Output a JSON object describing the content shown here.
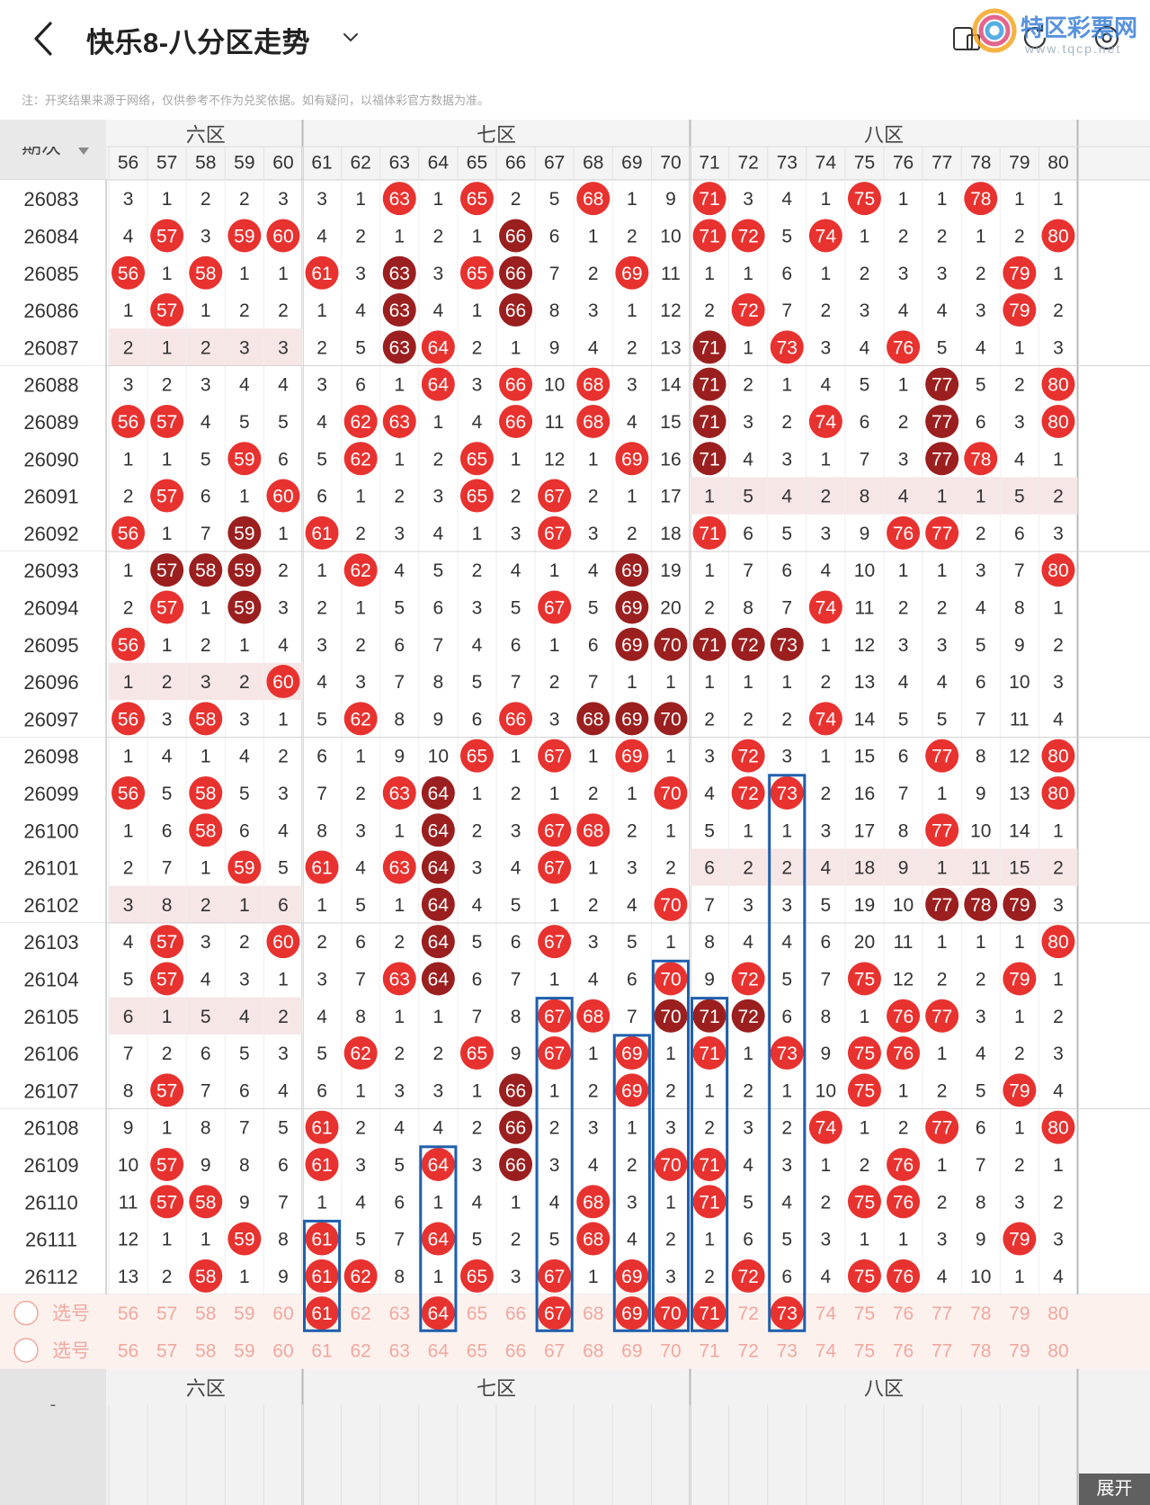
{
  "header": {
    "title": "快乐8-八分区走势",
    "back_icon": "chevron-left-icon",
    "dropdown_icon": "chevron-down-icon",
    "icons": [
      "tablet-icon",
      "refresh-icon",
      "settings-icon"
    ]
  },
  "watermark": {
    "text": "特区彩票网",
    "sub": "www.tqcp.net"
  },
  "notice": "注：开奖结果来源于网络，仅供参考不作为兑奖依据。如有疑问，以福体彩官方数据为准。",
  "table": {
    "period_header": "期次",
    "zones": [
      {
        "label": "六区",
        "start": 56,
        "end": 60
      },
      {
        "label": "七区",
        "start": 61,
        "end": 70
      },
      {
        "label": "八区",
        "start": 71,
        "end": 80
      }
    ],
    "columns": [
      56,
      57,
      58,
      59,
      60,
      61,
      62,
      63,
      64,
      65,
      66,
      67,
      68,
      69,
      70,
      71,
      72,
      73,
      74,
      75,
      76,
      77,
      78,
      79,
      80
    ],
    "rows": [
      {
        "p": "26083",
        "c": [
          3,
          1,
          2,
          2,
          3,
          3,
          1,
          "63",
          1,
          "65",
          2,
          5,
          "68",
          1,
          9,
          "71",
          3,
          4,
          1,
          "75",
          1,
          1,
          "78",
          1,
          1
        ]
      },
      {
        "p": "26084",
        "c": [
          4,
          "57",
          3,
          "59",
          "60",
          4,
          2,
          1,
          2,
          1,
          "66D",
          6,
          1,
          2,
          10,
          "71",
          "72",
          5,
          "74",
          1,
          2,
          2,
          1,
          2,
          "80"
        ]
      },
      {
        "p": "26085",
        "c": [
          "56",
          1,
          "58",
          1,
          1,
          "61",
          3,
          "63D",
          3,
          "65",
          "66D",
          7,
          2,
          "69",
          11,
          1,
          1,
          6,
          1,
          2,
          3,
          3,
          2,
          "79",
          1
        ]
      },
      {
        "p": "26086",
        "c": [
          1,
          "57",
          1,
          2,
          2,
          1,
          4,
          "63D",
          4,
          1,
          "66D",
          8,
          3,
          1,
          12,
          2,
          "72",
          7,
          2,
          3,
          4,
          4,
          3,
          "79",
          2
        ]
      },
      {
        "p": "26087",
        "c": [
          2,
          1,
          2,
          3,
          3,
          2,
          5,
          "63D",
          "64",
          2,
          1,
          9,
          4,
          2,
          13,
          "71D",
          1,
          "73",
          3,
          4,
          "76",
          5,
          4,
          1,
          3
        ]
      },
      {
        "p": "26088",
        "c": [
          3,
          2,
          3,
          4,
          4,
          3,
          6,
          1,
          "64",
          3,
          "66",
          10,
          "68",
          3,
          14,
          "71D",
          2,
          1,
          4,
          5,
          1,
          "77D",
          5,
          2,
          "80"
        ]
      },
      {
        "p": "26089",
        "c": [
          "56",
          "57",
          4,
          5,
          5,
          4,
          "62",
          "63",
          1,
          4,
          "66",
          11,
          "68",
          4,
          15,
          "71D",
          3,
          2,
          "74",
          6,
          2,
          "77D",
          6,
          3,
          "80"
        ]
      },
      {
        "p": "26090",
        "c": [
          1,
          1,
          5,
          "59",
          6,
          5,
          "62",
          1,
          2,
          "65",
          1,
          12,
          1,
          "69",
          16,
          "71D",
          4,
          3,
          1,
          7,
          3,
          "77D",
          "78",
          4,
          1
        ]
      },
      {
        "p": "26091",
        "c": [
          2,
          "57",
          6,
          1,
          "60",
          6,
          1,
          2,
          3,
          "65",
          2,
          "67",
          2,
          1,
          17,
          1,
          5,
          4,
          2,
          8,
          4,
          1,
          1,
          5,
          2
        ]
      },
      {
        "p": "26092",
        "c": [
          "56",
          1,
          7,
          "59D",
          1,
          "61",
          2,
          3,
          4,
          1,
          3,
          "67",
          3,
          2,
          18,
          "71",
          6,
          5,
          3,
          9,
          "76",
          "77",
          2,
          6,
          3
        ]
      },
      {
        "p": "26093",
        "c": [
          1,
          "57D",
          "58D",
          "59D",
          2,
          1,
          "62",
          4,
          5,
          2,
          4,
          1,
          4,
          "69D",
          19,
          1,
          7,
          6,
          4,
          10,
          1,
          1,
          3,
          7,
          "80"
        ]
      },
      {
        "p": "26094",
        "c": [
          2,
          "57",
          1,
          "59D",
          3,
          2,
          1,
          5,
          6,
          3,
          5,
          "67",
          5,
          "69D",
          20,
          2,
          8,
          7,
          "74",
          11,
          2,
          2,
          4,
          8,
          1
        ]
      },
      {
        "p": "26095",
        "c": [
          "56",
          1,
          2,
          1,
          4,
          3,
          2,
          6,
          7,
          4,
          6,
          1,
          6,
          "69D",
          "70D",
          "71D",
          "72D",
          "73D",
          1,
          12,
          3,
          3,
          5,
          9,
          2
        ]
      },
      {
        "p": "26096",
        "c": [
          1,
          2,
          3,
          2,
          "60",
          4,
          3,
          7,
          8,
          5,
          7,
          2,
          7,
          1,
          1,
          1,
          1,
          1,
          2,
          13,
          4,
          4,
          6,
          10,
          3
        ]
      },
      {
        "p": "26097",
        "c": [
          "56",
          3,
          "58",
          3,
          1,
          5,
          "62",
          8,
          9,
          6,
          "66",
          3,
          "68D",
          "69D",
          "70D",
          2,
          2,
          2,
          "74",
          14,
          5,
          5,
          7,
          11,
          4
        ]
      },
      {
        "p": "26098",
        "c": [
          1,
          4,
          1,
          4,
          2,
          6,
          1,
          9,
          10,
          "65",
          1,
          "67",
          1,
          "69",
          1,
          3,
          "72",
          3,
          1,
          15,
          6,
          "77",
          8,
          12,
          "80"
        ]
      },
      {
        "p": "26099",
        "c": [
          "56",
          5,
          "58",
          5,
          3,
          7,
          2,
          "63",
          "64D",
          1,
          2,
          1,
          2,
          1,
          "70",
          4,
          "72",
          "73",
          2,
          16,
          7,
          1,
          9,
          13,
          "80"
        ]
      },
      {
        "p": "26100",
        "c": [
          1,
          6,
          "58",
          6,
          4,
          8,
          3,
          1,
          "64D",
          2,
          3,
          "67",
          "68",
          2,
          1,
          5,
          1,
          1,
          3,
          17,
          8,
          "77",
          10,
          14,
          1
        ]
      },
      {
        "p": "26101",
        "c": [
          2,
          7,
          1,
          "59",
          5,
          "61",
          4,
          "63",
          "64D",
          3,
          4,
          "67",
          1,
          3,
          2,
          6,
          2,
          2,
          4,
          18,
          9,
          1,
          11,
          15,
          2
        ]
      },
      {
        "p": "26102",
        "c": [
          3,
          8,
          2,
          1,
          6,
          1,
          5,
          1,
          "64D",
          4,
          5,
          1,
          2,
          4,
          "70",
          7,
          3,
          3,
          5,
          19,
          10,
          "77D",
          "78D",
          "79D",
          3
        ]
      },
      {
        "p": "26103",
        "c": [
          4,
          "57",
          3,
          2,
          "60",
          2,
          6,
          2,
          "64D",
          5,
          6,
          "67",
          3,
          5,
          1,
          8,
          4,
          4,
          6,
          20,
          11,
          1,
          1,
          1,
          "80"
        ]
      },
      {
        "p": "26104",
        "c": [
          5,
          "57",
          4,
          3,
          1,
          3,
          7,
          "63",
          "64D",
          6,
          7,
          1,
          4,
          6,
          "70",
          9,
          "72",
          5,
          7,
          "75",
          12,
          2,
          2,
          "79",
          1
        ]
      },
      {
        "p": "26105",
        "c": [
          6,
          1,
          5,
          4,
          2,
          4,
          8,
          1,
          1,
          7,
          8,
          "67",
          "68",
          7,
          "70D",
          "71D",
          "72D",
          6,
          8,
          1,
          "76",
          "77",
          3,
          1,
          2
        ]
      },
      {
        "p": "26106",
        "c": [
          7,
          2,
          6,
          5,
          3,
          5,
          "62",
          2,
          2,
          "65",
          9,
          "67",
          1,
          "69",
          1,
          "71",
          1,
          "73",
          9,
          "75",
          "76",
          1,
          4,
          2,
          3
        ]
      },
      {
        "p": "26107",
        "c": [
          8,
          "57",
          7,
          6,
          4,
          6,
          1,
          3,
          3,
          1,
          "66D",
          1,
          2,
          "69",
          2,
          1,
          2,
          1,
          10,
          "75",
          1,
          2,
          5,
          "79",
          4
        ]
      },
      {
        "p": "26108",
        "c": [
          9,
          1,
          8,
          7,
          5,
          "61",
          2,
          4,
          4,
          2,
          "66D",
          2,
          3,
          1,
          3,
          2,
          3,
          2,
          "74",
          1,
          2,
          "77",
          6,
          1,
          "80"
        ]
      },
      {
        "p": "26109",
        "c": [
          10,
          "57",
          9,
          8,
          6,
          "61",
          3,
          5,
          "64",
          3,
          "66D",
          3,
          4,
          2,
          "70",
          "71",
          4,
          3,
          1,
          2,
          "76",
          1,
          7,
          2,
          1
        ]
      },
      {
        "p": "26110",
        "c": [
          11,
          "57",
          "58",
          9,
          7,
          1,
          4,
          6,
          1,
          4,
          1,
          4,
          "68",
          3,
          1,
          "71",
          5,
          4,
          2,
          "75",
          "76",
          2,
          8,
          3,
          2
        ]
      },
      {
        "p": "26111",
        "c": [
          12,
          1,
          1,
          "59",
          8,
          "61",
          5,
          7,
          "64",
          5,
          2,
          5,
          "68",
          4,
          2,
          1,
          6,
          5,
          3,
          1,
          1,
          3,
          9,
          "79",
          3
        ]
      },
      {
        "p": "26112",
        "c": [
          13,
          2,
          "58",
          1,
          9,
          "61",
          "62",
          8,
          1,
          "65",
          3,
          "67",
          1,
          "69",
          3,
          2,
          "72",
          6,
          4,
          "75",
          "76",
          4,
          10,
          1,
          4
        ]
      }
    ],
    "shaded_rows": [
      "26087",
      "26096",
      "26102",
      "26105"
    ],
    "shaded_segments": [
      {
        "p": "26091",
        "from": 71,
        "to": 80
      },
      {
        "p": "26101",
        "from": 71,
        "to": 80
      }
    ],
    "select_rows": [
      {
        "label": "选号",
        "picked": [
          61,
          64,
          67,
          69,
          70,
          71,
          73
        ]
      },
      {
        "label": "选号",
        "picked": []
      }
    ],
    "boxed_columns": [
      {
        "col": 61,
        "from": "26111",
        "to": "26112",
        "include_select": true
      },
      {
        "col": 64,
        "from": "26109",
        "to": "26111",
        "include_select": true
      },
      {
        "col": 67,
        "from": "26105",
        "to": "26112",
        "include_select": true
      },
      {
        "col": 69,
        "from": "26106",
        "to": "26112",
        "include_select": true
      },
      {
        "col": 70,
        "from": "26104",
        "to": "26112",
        "include_select": true
      },
      {
        "col": 71,
        "from": "26105",
        "to": "26112",
        "include_select": true
      },
      {
        "col": 73,
        "from": "26099",
        "to": "26112",
        "include_select": true
      }
    ],
    "expand_label": "展开",
    "colors": {
      "ball_red": "#e8322f",
      "ball_dark": "#9b1f1f",
      "text": "#333333",
      "header_bg": "#f1f1f1",
      "row_shade": "#f6e6e6",
      "select_bg": "#fdf1ee",
      "select_text": "#f0a89e",
      "box_blue": "#1f5fad"
    }
  }
}
